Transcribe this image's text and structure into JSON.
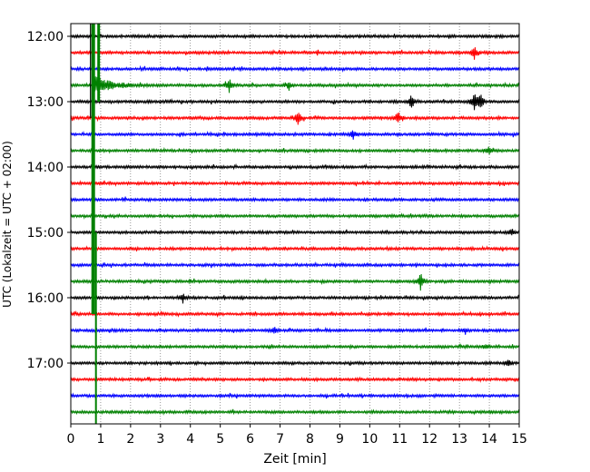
{
  "chart_data": {
    "type": "line",
    "title": "",
    "xlabel": "Zeit  [min]",
    "ylabel": "UTC (Lokalzeit = UTC + 02:00)",
    "xlim": [
      0,
      15
    ],
    "x_ticks": [
      "0",
      "1",
      "2",
      "3",
      "4",
      "5",
      "6",
      "7",
      "8",
      "9",
      "10",
      "11",
      "12",
      "13",
      "14",
      "15"
    ],
    "y_tick_labels": [
      "12:00",
      "13:00",
      "14:00",
      "15:00",
      "16:00",
      "17:00"
    ],
    "grid": "vertical dotted at each minute",
    "trace_interval_minutes": 15,
    "trace_start": "12:00",
    "trace_end": "17:45",
    "trace_count": 24,
    "color_cycle": [
      "#000000",
      "#ff0000",
      "#0000ff",
      "#008000"
    ],
    "big_event": {
      "start_trace": 3,
      "minute": 0.75,
      "continues_to_trace": 23
    },
    "events": [
      {
        "trace": 1,
        "minute": 13.5,
        "amplitude": 0.8
      },
      {
        "trace": 3,
        "minute": 5.3,
        "amplitude": 0.9
      },
      {
        "trace": 3,
        "minute": 7.3,
        "amplitude": 0.5
      },
      {
        "trace": 4,
        "minute": 11.4,
        "amplitude": 0.9
      },
      {
        "trace": 4,
        "minute": 13.5,
        "amplitude": 1.1
      },
      {
        "trace": 4,
        "minute": 13.7,
        "amplitude": 1.0
      },
      {
        "trace": 5,
        "minute": 7.6,
        "amplitude": 0.8
      },
      {
        "trace": 5,
        "minute": 10.95,
        "amplitude": 0.9
      },
      {
        "trace": 6,
        "minute": 9.45,
        "amplitude": 0.5
      },
      {
        "trace": 7,
        "minute": 14.0,
        "amplitude": 0.6
      },
      {
        "trace": 12,
        "minute": 14.75,
        "amplitude": 0.5
      },
      {
        "trace": 15,
        "minute": 11.7,
        "amplitude": 1.1
      },
      {
        "trace": 16,
        "minute": 3.75,
        "amplitude": 0.6
      },
      {
        "trace": 18,
        "minute": 6.8,
        "amplitude": 0.4
      },
      {
        "trace": 18,
        "minute": 13.2,
        "amplitude": 0.3
      },
      {
        "trace": 19,
        "minute": 13.9,
        "amplitude": 0.3
      },
      {
        "trace": 20,
        "minute": 14.65,
        "amplitude": 0.4
      }
    ]
  }
}
